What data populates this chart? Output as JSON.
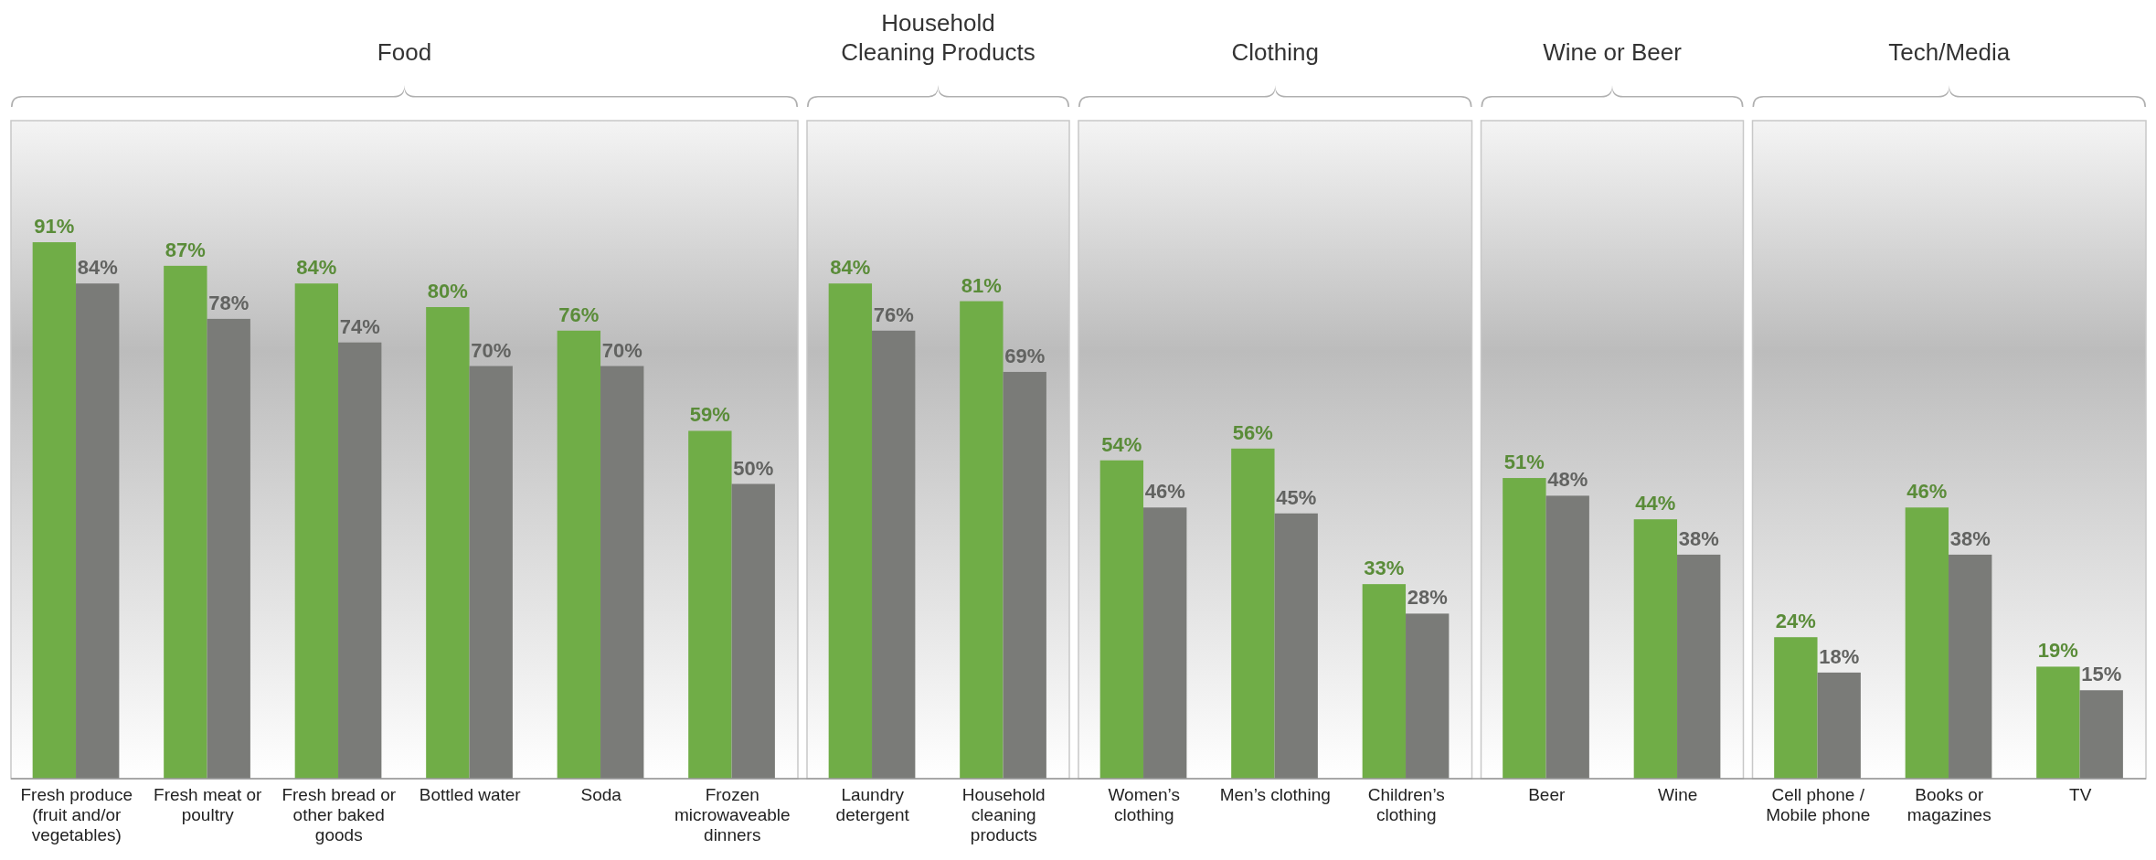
{
  "chart_data": {
    "type": "bar",
    "categories": [
      "Fresh produce (fruit and/or vegetables)",
      "Fresh meat or poultry",
      "Fresh bread or other baked goods",
      "Bottled water",
      "Soda",
      "Frozen microwaveable dinners",
      "Laundry detergent",
      "Household cleaning products",
      "Women’s clothing",
      "Men’s clothing",
      "Children’s clothing",
      "Beer",
      "Wine",
      "Cell phone / Mobile phone",
      "Books or magazines",
      "TV"
    ],
    "series": [
      {
        "color": "#70ad47",
        "values": [
          91,
          87,
          84,
          80,
          76,
          59,
          84,
          81,
          54,
          56,
          33,
          51,
          44,
          24,
          46,
          19
        ],
        "value_labels": [
          "91%",
          "87%",
          "84%",
          "80%",
          "76%",
          "59%",
          "84%",
          "81%",
          "54%",
          "56%",
          "33%",
          "51%",
          "44%",
          "24%",
          "46%",
          "19%"
        ]
      },
      {
        "color": "#7a7b78",
        "values": [
          84,
          78,
          74,
          70,
          70,
          50,
          76,
          69,
          46,
          45,
          28,
          48,
          38,
          18,
          38,
          15
        ],
        "value_labels": [
          "84%",
          "78%",
          "74%",
          "70%",
          "70%",
          "50%",
          "76%",
          "69%",
          "46%",
          "45%",
          "28%",
          "48%",
          "38%",
          "18%",
          "38%",
          "15%"
        ]
      }
    ],
    "tick_labels": "x",
    "annotations": [
      "Food",
      "Household Cleaning Products",
      "Clothing",
      "Wine or Beer",
      "Tech/Media"
    ]
  }
}
